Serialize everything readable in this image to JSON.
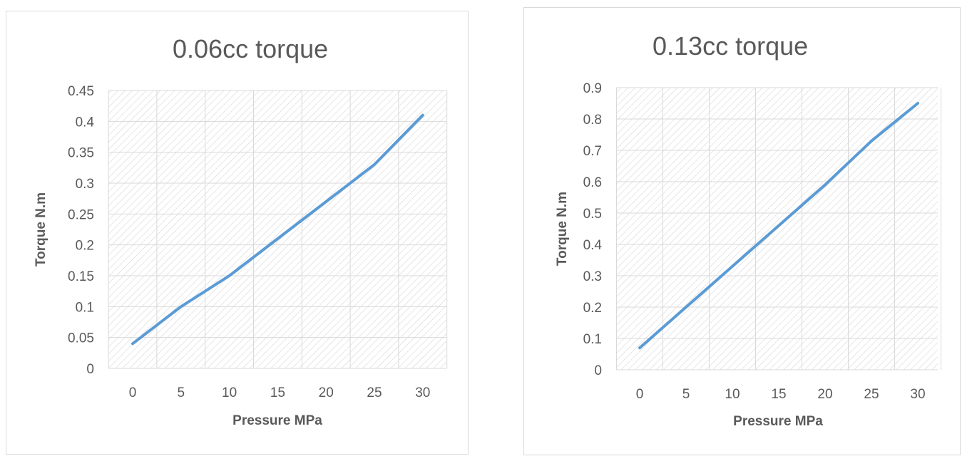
{
  "chart_data": [
    {
      "type": "line",
      "title": "0.06cc torque",
      "xlabel": "Pressure MPa",
      "ylabel": "Torque  N.m",
      "x": [
        0,
        5,
        10,
        15,
        20,
        25,
        30
      ],
      "x_tick_labels": [
        "0",
        "5",
        "10",
        "15",
        "20",
        "25",
        "30"
      ],
      "y_tick_labels": [
        "0",
        "0.05",
        "0.1",
        "0.15",
        "0.2",
        "0.25",
        "0.3",
        "0.35",
        "0.4",
        "0.45"
      ],
      "ylim": [
        0,
        0.45
      ],
      "y_tick_step": 0.05,
      "series": [
        {
          "values": [
            0.04,
            0.1,
            0.15,
            0.21,
            0.27,
            0.33,
            0.41
          ],
          "color": "#5b9bd5"
        }
      ],
      "grid": true,
      "plot_background": "hatched"
    },
    {
      "type": "line",
      "title": "0.13cc  torque",
      "xlabel": "Pressure MPa",
      "ylabel": "Torque N.m",
      "x": [
        0,
        5,
        10,
        15,
        20,
        25,
        30
      ],
      "x_tick_labels": [
        "0",
        "5",
        "10",
        "15",
        "20",
        "25",
        "30"
      ],
      "y_tick_labels": [
        "0",
        "0.1",
        "0.2",
        "0.3",
        "0.4",
        "0.5",
        "0.6",
        "0.7",
        "0.8",
        "0.9"
      ],
      "ylim": [
        0,
        0.9
      ],
      "y_tick_step": 0.1,
      "series": [
        {
          "values": [
            0.07,
            0.2,
            0.33,
            0.46,
            0.59,
            0.73,
            0.85
          ],
          "color": "#5b9bd5"
        }
      ],
      "grid": true,
      "plot_background": "hatched"
    }
  ]
}
